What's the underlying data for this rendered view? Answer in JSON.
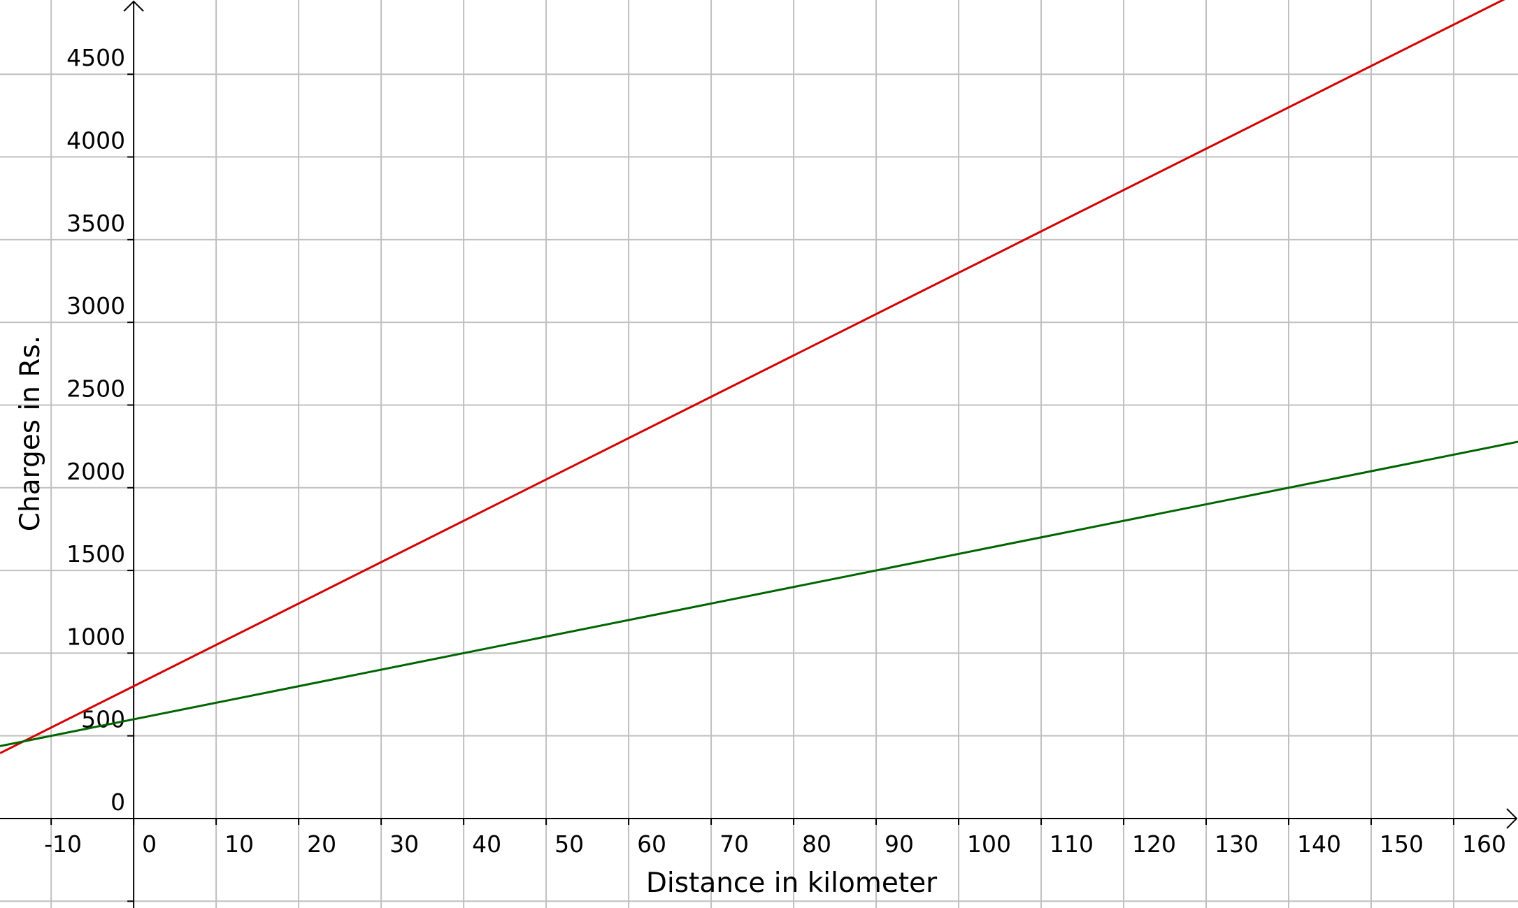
{
  "chart_data": {
    "type": "line",
    "title": "",
    "xlabel": "Distance in kilometer",
    "ylabel": "Charges in Rs.",
    "xlim": [
      -16.2,
      167.8
    ],
    "ylim": [
      -541,
      4949
    ],
    "grid": true,
    "x_ticks": [
      -10,
      0,
      10,
      20,
      30,
      40,
      50,
      60,
      70,
      80,
      90,
      100,
      110,
      120,
      130,
      140,
      150,
      160
    ],
    "y_ticks": [
      0,
      500,
      1000,
      1500,
      2000,
      2500,
      3000,
      3500,
      4000,
      4500
    ],
    "x_tick_labels": [
      "-10",
      "0",
      "10",
      "20",
      "30",
      "40",
      "50",
      "60",
      "70",
      "80",
      "90",
      "100",
      "110",
      "120",
      "130",
      "140",
      "150",
      "160"
    ],
    "y_tick_labels": [
      "0",
      "500",
      "1000",
      "1500",
      "2000",
      "2500",
      "3000",
      "3500",
      "4000",
      "4500"
    ],
    "series": [
      {
        "color": "#d40000",
        "points": [
          [
            -16.2,
            395
          ],
          [
            167.8,
            4995
          ]
        ],
        "equation_slope": 25,
        "equation_intercept": 800
      },
      {
        "color": "#006400",
        "points": [
          [
            -16.2,
            438
          ],
          [
            167.8,
            2278
          ]
        ],
        "equation_slope": 10,
        "equation_intercept": 600
      }
    ]
  },
  "colors": {
    "grid": "#c0c0c0",
    "axis": "#000000"
  }
}
